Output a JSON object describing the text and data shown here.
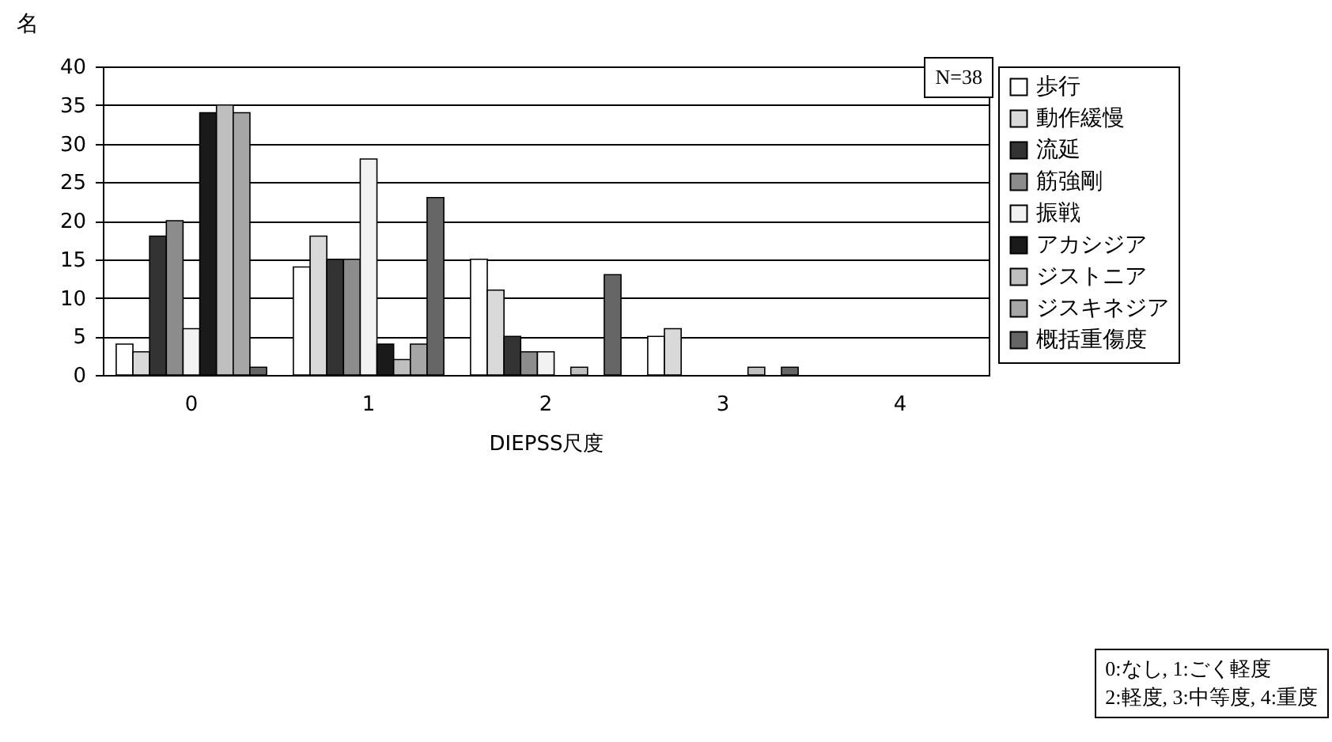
{
  "chart_data": {
    "type": "bar",
    "xlabel": "DIEPSS尺度",
    "ylabel": "名",
    "categories": [
      "0",
      "1",
      "2",
      "3",
      "4"
    ],
    "series": [
      {
        "name": "歩行",
        "color": "#ffffff",
        "values": [
          4,
          14,
          15,
          5,
          0
        ]
      },
      {
        "name": "動作緩慢",
        "color": "#d9d9d9",
        "values": [
          3,
          18,
          11,
          6,
          0
        ]
      },
      {
        "name": "流延",
        "color": "#333333",
        "values": [
          18,
          15,
          5,
          0,
          0
        ]
      },
      {
        "name": "筋強剛",
        "color": "#8c8c8c",
        "values": [
          20,
          15,
          3,
          0,
          0
        ]
      },
      {
        "name": "振戦",
        "color": "#f2f2f2",
        "values": [
          6,
          28,
          3,
          0,
          0
        ]
      },
      {
        "name": "アカシジア",
        "color": "#1a1a1a",
        "values": [
          34,
          4,
          0,
          0,
          0
        ]
      },
      {
        "name": "ジストニア",
        "color": "#bfbfbf",
        "values": [
          35,
          2,
          1,
          1,
          0
        ]
      },
      {
        "name": "ジスキネジア",
        "color": "#a6a6a6",
        "values": [
          34,
          4,
          0,
          0,
          0
        ]
      },
      {
        "name": "概括重傷度",
        "color": "#666666",
        "values": [
          1,
          23,
          13,
          1,
          0
        ]
      }
    ],
    "ylim": [
      0,
      40
    ],
    "yticks": [
      0,
      5,
      10,
      15,
      20,
      25,
      30,
      35,
      40
    ],
    "grid": "y",
    "legend": "right",
    "annotations": [
      "N=38",
      "0:なし, 1:ごく軽度\n2:軽度, 3:中等度, 4:重度"
    ]
  }
}
